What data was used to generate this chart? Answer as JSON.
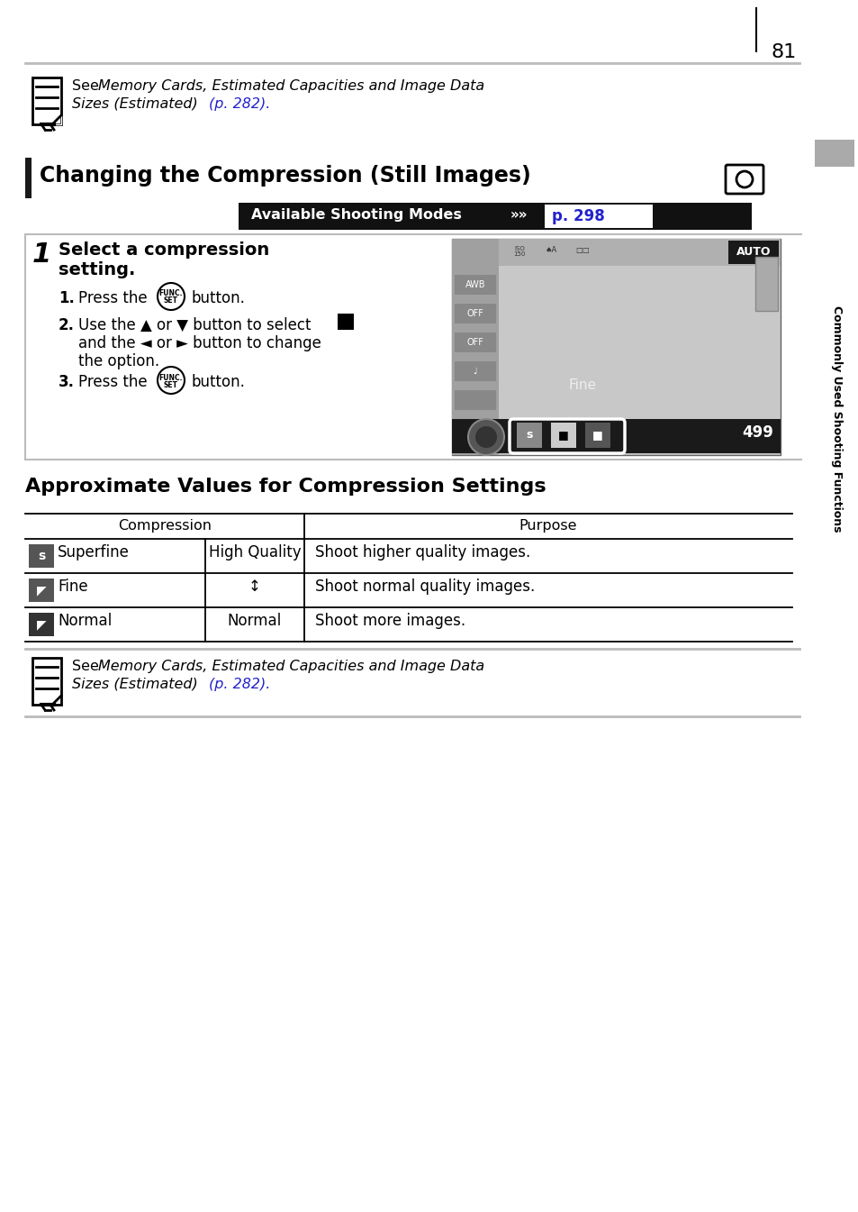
{
  "page_number": "81",
  "bg": "#ffffff",
  "link_color": "#2222cc",
  "sidebar_text": "Commonly Used Shooting Functions",
  "sidebar_bg": "#888888",
  "heading_text": "Changing the Compression (Still Images)",
  "avail_text": "Available Shooting Modes",
  "avail_link": "p. 298",
  "table_title": "Approximate Values for Compression Settings",
  "table_rows": [
    {
      "icon": "s",
      "icon_bg": "#444444",
      "label": "Superfine",
      "quality": "High Quality",
      "purpose": "Shoot higher quality images."
    },
    {
      "icon": "◤",
      "icon_bg": "#444444",
      "label": "Fine",
      "quality": "↕",
      "purpose": "Shoot normal quality images."
    },
    {
      "icon": "◤",
      "icon_bg": "#222222",
      "label": "Normal",
      "quality": "Normal",
      "purpose": "Shoot more images."
    }
  ]
}
